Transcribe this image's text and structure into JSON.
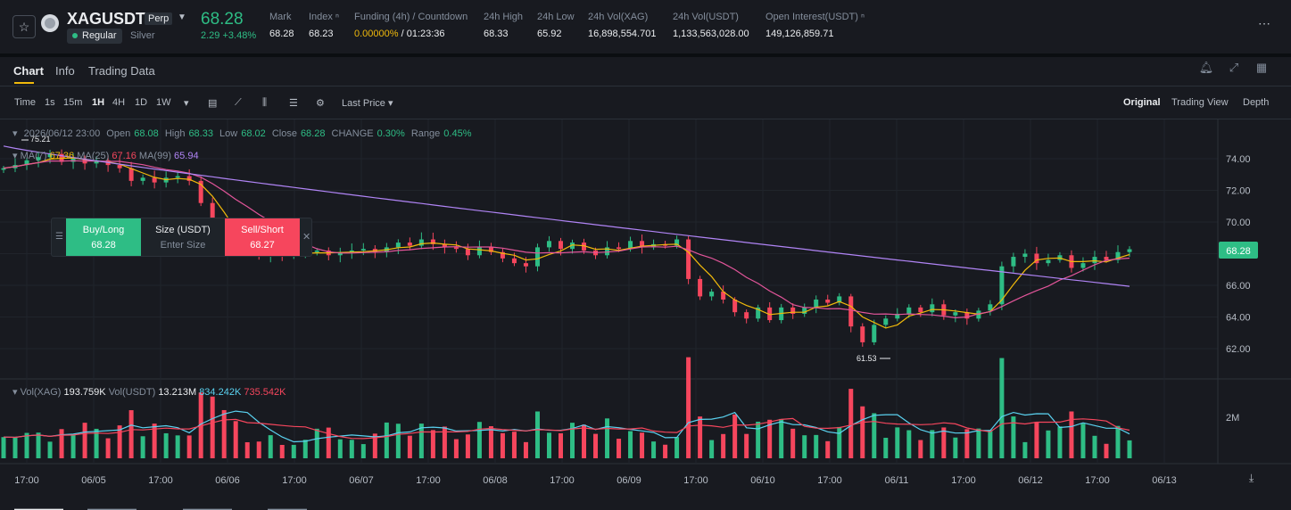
{
  "header": {
    "symbol": "XAGUSDT",
    "contract_badge": "Perp",
    "session_badge": "Regular",
    "asset_name": "Silver",
    "last_price": "68.28",
    "change_abs": "2.29",
    "change_pct": "+3.48%",
    "stats": [
      {
        "label": "Mark",
        "value": "68.28"
      },
      {
        "label": "Index ⁿ",
        "value": "68.23"
      },
      {
        "label": "Funding (4h) / Countdown",
        "value_rate": "0.00000%",
        "value_countdown": " / 01:23:36"
      },
      {
        "label": "24h High",
        "value": "68.33"
      },
      {
        "label": "24h Low",
        "value": "65.92"
      },
      {
        "label": "24h Vol(XAG)",
        "value": "16,898,554.701"
      },
      {
        "label": "24h Vol(USDT)",
        "value": "1,133,563,028.00"
      },
      {
        "label": "Open Interest(USDT) ⁿ",
        "value": "149,126,859.71"
      }
    ]
  },
  "tabs": [
    "Chart",
    "Info",
    "Trading Data"
  ],
  "toolbar": {
    "intervals": [
      "Time",
      "1s",
      "15m",
      "1H",
      "4H",
      "1D",
      "1W"
    ],
    "active_interval": "1H",
    "price_type": "Last Price",
    "views": [
      "Original",
      "Trading View",
      "Depth"
    ],
    "active_view": "Original"
  },
  "ohlc": {
    "date": "2026/06/12 23:00",
    "open_label": "Open",
    "open": "68.08",
    "high_label": "High",
    "high": "68.33",
    "low_label": "Low",
    "low": "68.02",
    "close_label": "Close",
    "close": "68.28",
    "change_label": "CHANGE",
    "change": "0.30%",
    "range_label": "Range",
    "range": "0.45%"
  },
  "ma": {
    "ma7_label": "MA(7)",
    "ma7": "67.36",
    "ma25_label": "MA(25)",
    "ma25": "67.16",
    "ma99_label": "MA(99)",
    "ma99": "65.94"
  },
  "volume": {
    "xag_label": "Vol(XAG)",
    "xag": "193.759K",
    "usdt_label": "Vol(USDT)",
    "usdt": "13.213M",
    "ma1": "834.242K",
    "ma2": "735.542K"
  },
  "order_widget": {
    "buy_label": "Buy/Long",
    "buy_price": "68.28",
    "size_label": "Size (USDT)",
    "size_placeholder": "Enter Size",
    "sell_label": "Sell/Short",
    "sell_price": "68.27"
  },
  "chart_labels": {
    "high_marker": "75.21",
    "low_marker": "61.53",
    "current_price_tag": "68.28",
    "vol_axis_tick": "2M"
  },
  "chart_data": {
    "type": "candlestick",
    "price_axis_ticks": [
      "74.00",
      "72.00",
      "70.00",
      "68.00",
      "66.00",
      "64.00",
      "62.00"
    ],
    "time_axis_ticks": [
      "17:00",
      "06/05",
      "17:00",
      "06/06",
      "17:00",
      "06/07",
      "17:00",
      "06/08",
      "17:00",
      "06/09",
      "17:00",
      "06/10",
      "17:00",
      "06/11",
      "17:00",
      "06/12",
      "17:00",
      "06/13"
    ],
    "colors": {
      "up": "#2ebd85",
      "down": "#f6465d",
      "ma7": "#f0b90b",
      "ma25": "#e2559a",
      "ma99": "#b084f5"
    },
    "close_series": [
      73.4,
      73.6,
      73.9,
      74.1,
      74.3,
      73.8,
      74.0,
      73.7,
      73.9,
      73.6,
      73.4,
      72.6,
      72.8,
      72.5,
      72.8,
      72.9,
      72.6,
      71.2,
      69.8,
      68.9,
      68.2,
      68.0,
      67.9,
      68.1,
      67.9,
      68.0,
      68.1,
      68.2,
      67.9,
      68.1,
      68.2,
      68.3,
      68.1,
      68.4,
      68.7,
      68.5,
      68.9,
      68.6,
      68.4,
      68.3,
      67.9,
      68.4,
      68.1,
      67.7,
      67.4,
      67.2,
      68.4,
      68.8,
      68.3,
      68.7,
      68.2,
      67.9,
      68.4,
      68.3,
      68.8,
      68.4,
      68.6,
      68.5,
      68.9,
      66.4,
      65.3,
      65.6,
      65.1,
      64.3,
      63.9,
      64.6,
      63.8,
      64.6,
      64.2,
      64.6,
      65.1,
      64.9,
      65.3,
      63.4,
      62.4,
      63.5,
      63.9,
      64.2,
      64.6,
      64.3,
      64.8,
      64.1,
      64.3,
      63.9,
      64.4,
      64.8,
      67.2,
      67.8,
      68.0,
      67.4,
      67.6,
      67.9,
      67.1,
      67.4,
      67.8,
      67.6,
      68.1,
      68.28
    ]
  }
}
